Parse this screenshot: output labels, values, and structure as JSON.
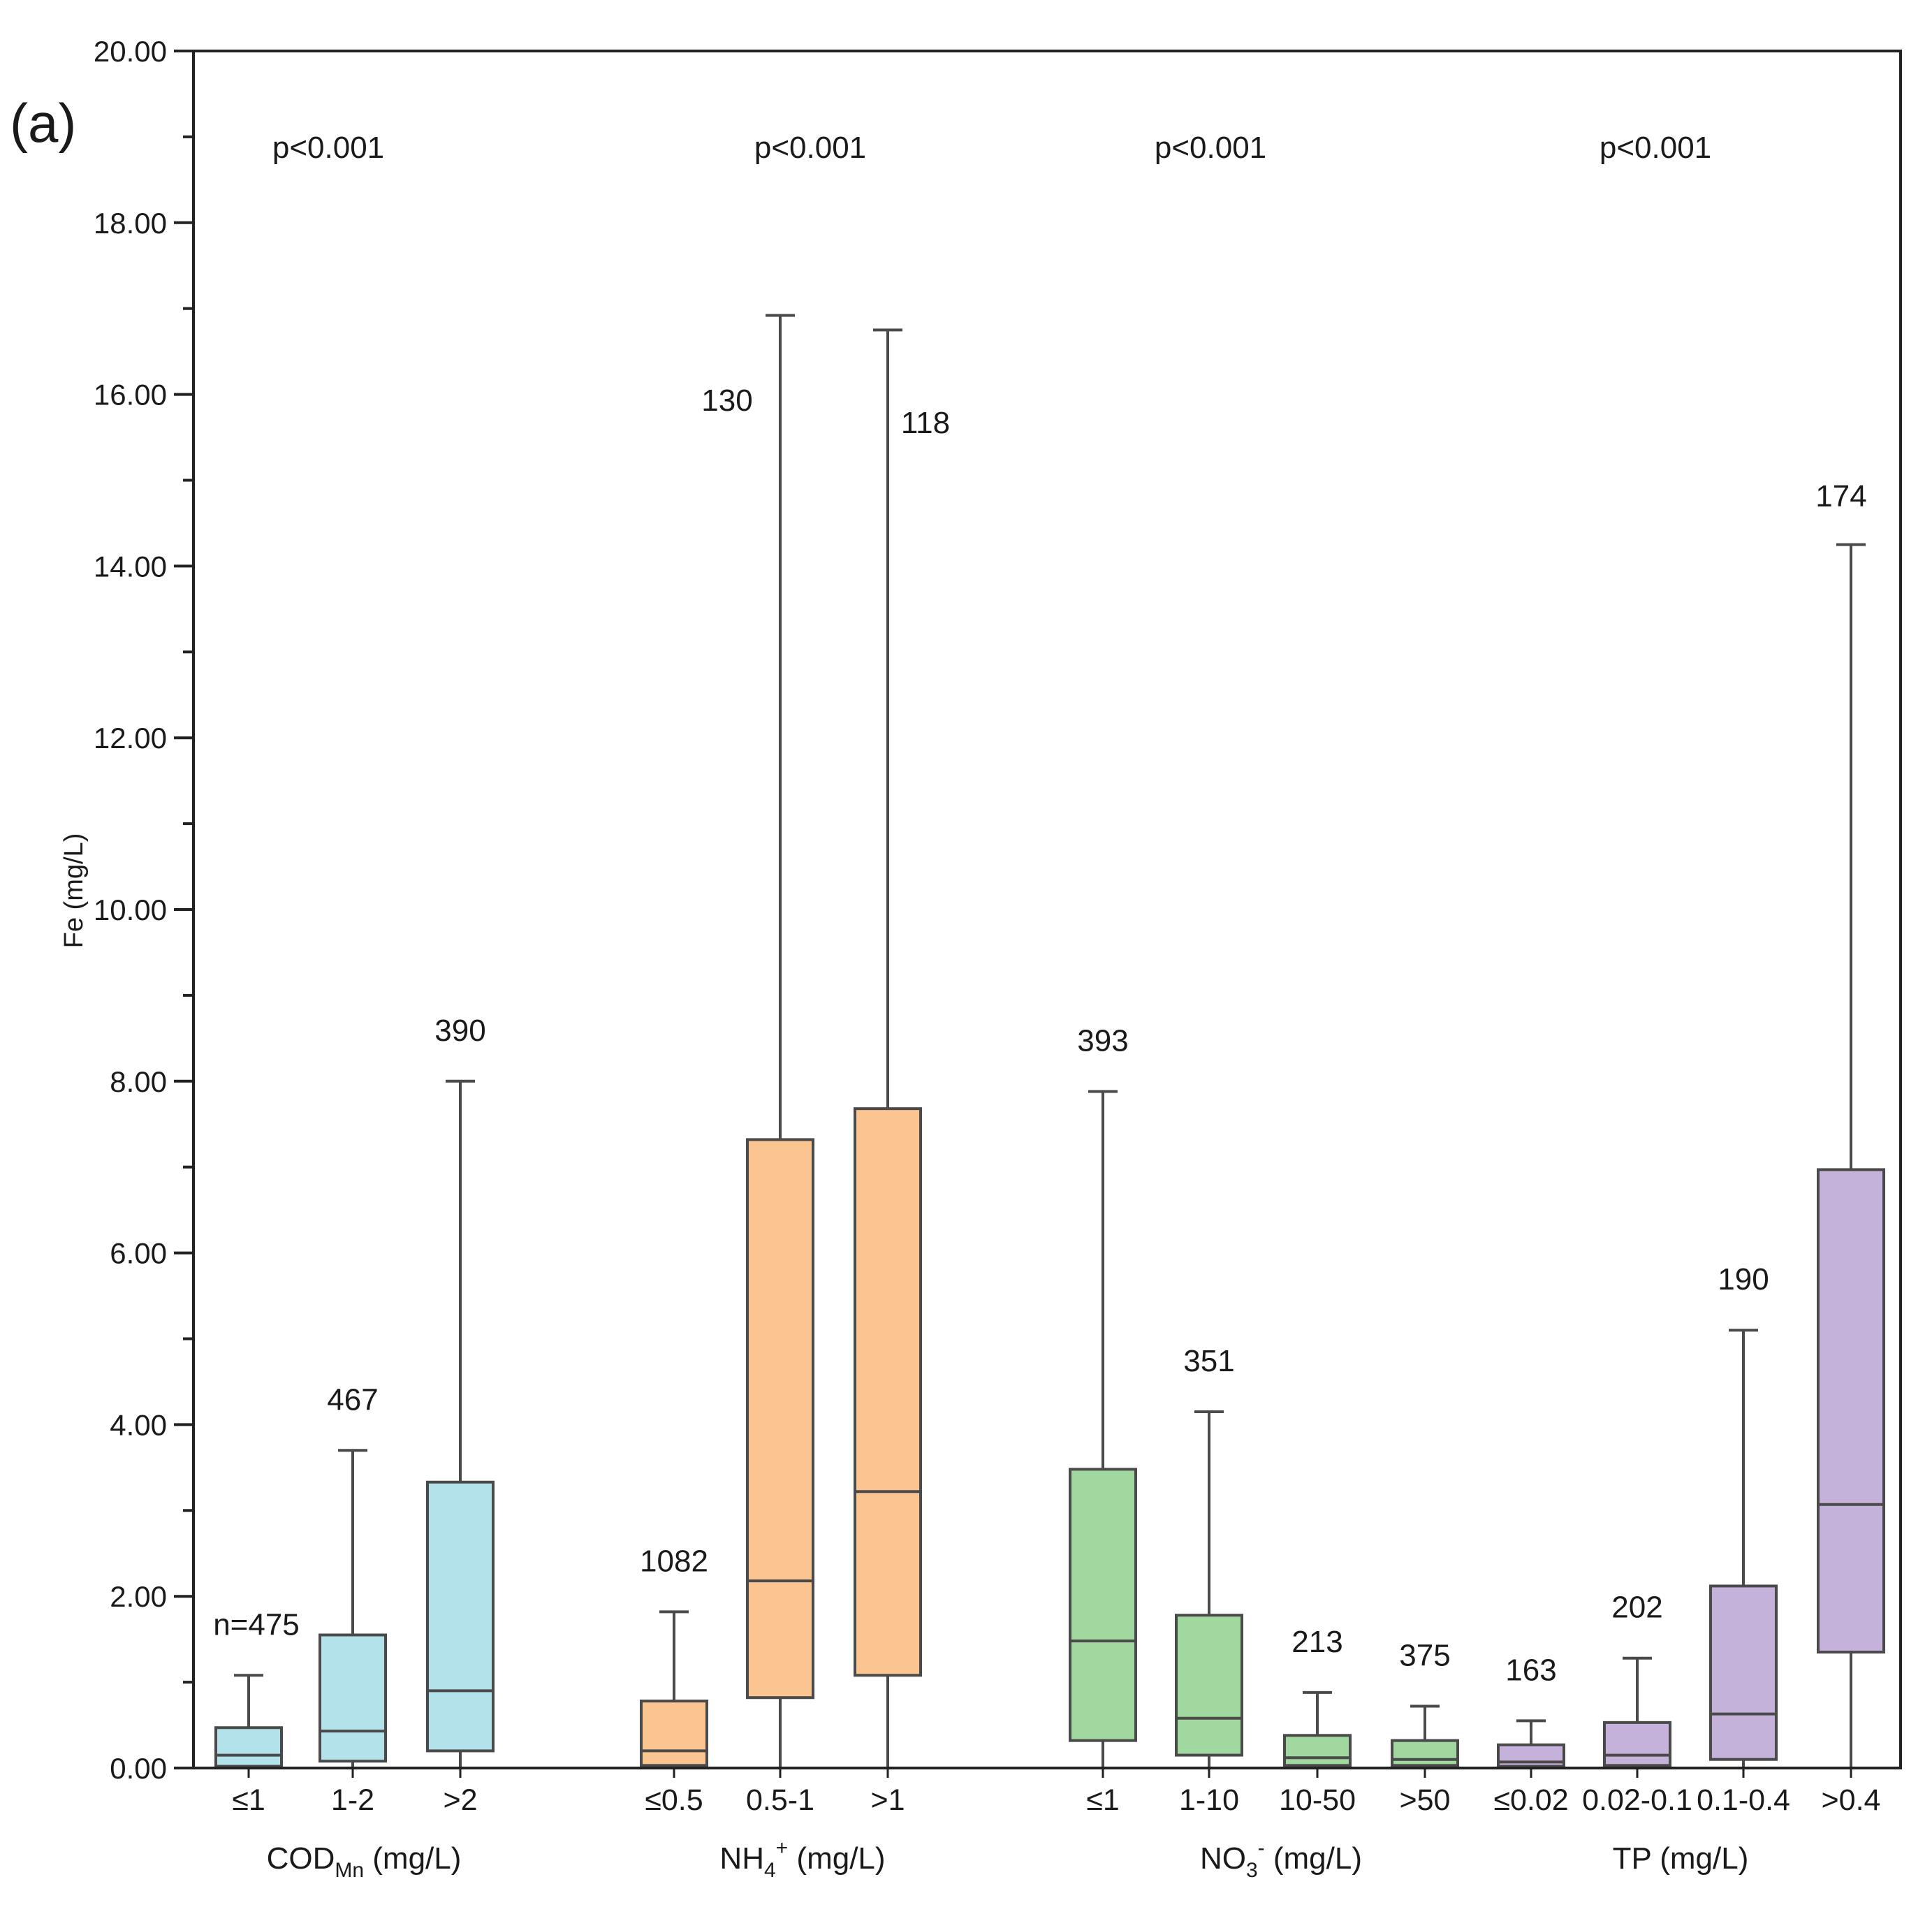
{
  "chart_data": {
    "type": "box",
    "panel_label": "(a)",
    "ylabel": "Fe (mg/L)",
    "ylim": [
      0,
      20
    ],
    "yticks": [
      "0.00",
      "2.00",
      "4.00",
      "6.00",
      "8.00",
      "10.00",
      "12.00",
      "14.00",
      "16.00",
      "18.00",
      "20.00"
    ],
    "groups": [
      {
        "name": "COD",
        "sub": "Mn",
        "sup": "",
        "unit": " (mg/L)",
        "color": "#b3e2ea",
        "p_value": "p<0.001",
        "boxes": [
          {
            "category": "≤1",
            "n": "n=475",
            "min": 0.0,
            "q1": 0.02,
            "median": 0.15,
            "q3": 0.47,
            "max": 1.08
          },
          {
            "category": "1-2",
            "n": "467",
            "min": 0.0,
            "q1": 0.08,
            "median": 0.43,
            "q3": 1.55,
            "max": 3.7
          },
          {
            "category": ">2",
            "n": "390",
            "min": 0.0,
            "q1": 0.2,
            "median": 0.9,
            "q3": 3.33,
            "max": 8.0
          }
        ]
      },
      {
        "name": "NH",
        "sub": "4",
        "sup": "+",
        "unit": " (mg/L)",
        "color": "#fbc592",
        "p_value": "p<0.001",
        "boxes": [
          {
            "category": "≤0.5",
            "n": "1082",
            "min": 0.0,
            "q1": 0.03,
            "median": 0.2,
            "q3": 0.78,
            "max": 1.82
          },
          {
            "category": "0.5-1",
            "n": "130",
            "min": 0.0,
            "q1": 0.82,
            "median": 2.18,
            "q3": 7.32,
            "max": 16.92
          },
          {
            "category": ">1",
            "n": "118",
            "min": 0.0,
            "q1": 1.08,
            "median": 3.22,
            "q3": 7.68,
            "max": 16.75
          }
        ]
      },
      {
        "name": "NO",
        "sub": "3",
        "sup": "-",
        "unit": " (mg/L)",
        "color": "#a0d8a0",
        "p_value": "p<0.001",
        "boxes": [
          {
            "category": "≤1",
            "n": "393",
            "min": 0.0,
            "q1": 0.32,
            "median": 1.48,
            "q3": 3.48,
            "max": 7.88
          },
          {
            "category": "1-10",
            "n": "351",
            "min": 0.0,
            "q1": 0.15,
            "median": 0.58,
            "q3": 1.78,
            "max": 4.15
          },
          {
            "category": "10-50",
            "n": "213",
            "min": 0.0,
            "q1": 0.03,
            "median": 0.12,
            "q3": 0.38,
            "max": 0.88
          },
          {
            "category": ">50",
            "n": "375",
            "min": 0.0,
            "q1": 0.03,
            "median": 0.1,
            "q3": 0.32,
            "max": 0.72
          }
        ]
      },
      {
        "name": "TP",
        "sub": "",
        "sup": "",
        "unit": " (mg/L)",
        "color": "#c4b2da",
        "p_value": "p<0.001",
        "boxes": [
          {
            "category": "≤0.02",
            "n": "163",
            "min": 0.0,
            "q1": 0.02,
            "median": 0.07,
            "q3": 0.27,
            "max": 0.55
          },
          {
            "category": "0.02-0.1",
            "n": "202",
            "min": 0.0,
            "q1": 0.03,
            "median": 0.15,
            "q3": 0.53,
            "max": 1.28
          },
          {
            "category": "0.1-0.4",
            "n": "190",
            "min": 0.0,
            "q1": 0.1,
            "median": 0.63,
            "q3": 2.12,
            "max": 5.1
          },
          {
            "category": ">0.4",
            "n": "174",
            "min": 0.0,
            "q1": 1.35,
            "median": 3.07,
            "q3": 6.97,
            "max": 14.25
          }
        ]
      }
    ]
  }
}
